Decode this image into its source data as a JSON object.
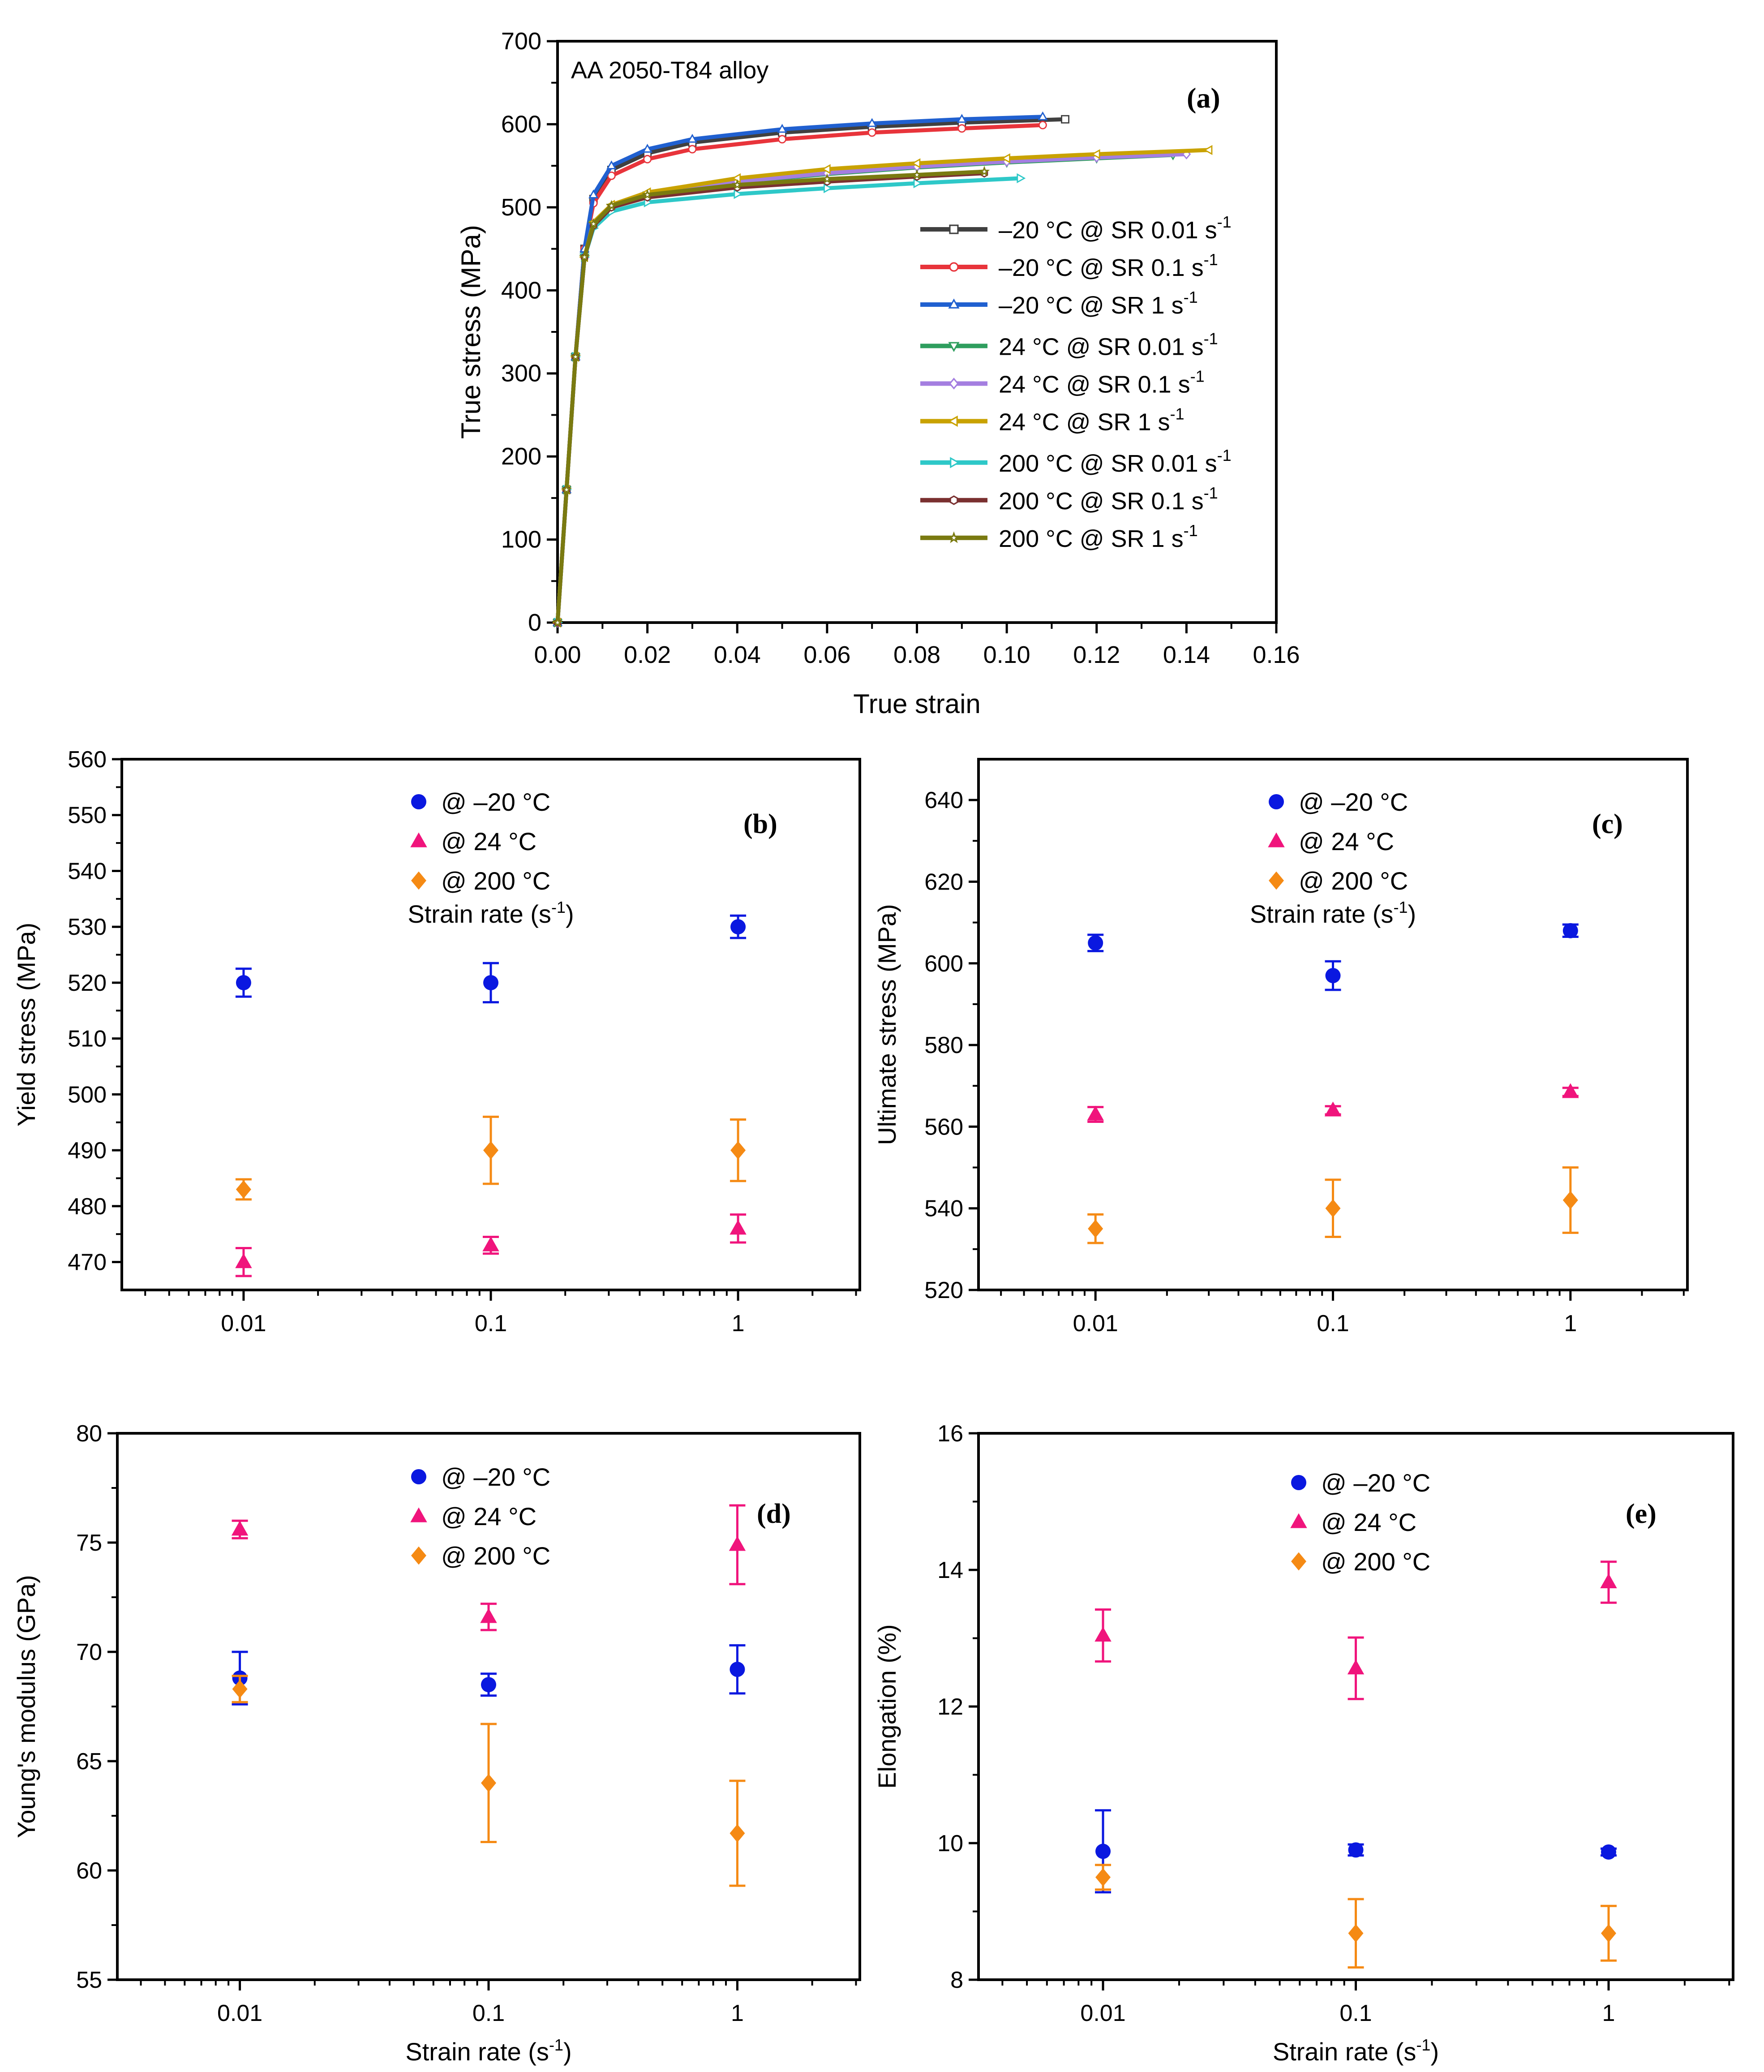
{
  "chart_data": [
    {
      "id": "a",
      "type": "line",
      "panel_label": "(a)",
      "title": "AA 2050-T84 alloy",
      "xlabel": "True strain",
      "ylabel": "True stress (MPa)",
      "xlim": [
        0,
        0.16
      ],
      "ylim": [
        0,
        700
      ],
      "xticks": [
        "0.00",
        "0.02",
        "0.04",
        "0.06",
        "0.08",
        "0.10",
        "0.12",
        "0.14",
        "0.16"
      ],
      "yticks": [
        "0",
        "100",
        "200",
        "300",
        "400",
        "500",
        "600",
        "700"
      ],
      "legend_position": "right",
      "series": [
        {
          "name": "–20 °C @ SR 0.01 s",
          "sup": "-1",
          "color": "#404040",
          "marker": "square",
          "x": [
            0,
            0.002,
            0.004,
            0.006,
            0.008,
            0.012,
            0.02,
            0.03,
            0.05,
            0.07,
            0.09,
            0.113
          ],
          "y": [
            0,
            160,
            320,
            450,
            510,
            545,
            565,
            578,
            590,
            597,
            602,
            606
          ]
        },
        {
          "name": "–20 °C @ SR 0.1 s",
          "sup": "-1",
          "color": "#e8343b",
          "marker": "circle",
          "x": [
            0,
            0.002,
            0.004,
            0.006,
            0.008,
            0.012,
            0.02,
            0.03,
            0.05,
            0.07,
            0.09,
            0.108
          ],
          "y": [
            0,
            160,
            320,
            450,
            505,
            538,
            558,
            570,
            582,
            590,
            595,
            599
          ]
        },
        {
          "name": "–20 °C @ SR 1 s",
          "sup": "-1",
          "color": "#2060d0",
          "marker": "triangle-up",
          "x": [
            0,
            0.002,
            0.004,
            0.006,
            0.008,
            0.012,
            0.02,
            0.03,
            0.05,
            0.07,
            0.09,
            0.108
          ],
          "y": [
            0,
            160,
            320,
            450,
            515,
            550,
            570,
            582,
            594,
            601,
            606,
            609
          ]
        },
        {
          "name": "24 °C @ SR 0.01 s",
          "sup": "-1",
          "color": "#2e9e5e",
          "marker": "triangle-down",
          "x": [
            0,
            0.002,
            0.004,
            0.006,
            0.008,
            0.012,
            0.02,
            0.04,
            0.06,
            0.08,
            0.1,
            0.12,
            0.137
          ],
          "y": [
            0,
            160,
            320,
            440,
            480,
            500,
            515,
            530,
            540,
            548,
            554,
            559,
            563
          ]
        },
        {
          "name": "24 °C @ SR 0.1 s",
          "sup": "-1",
          "color": "#a47ee0",
          "marker": "diamond",
          "x": [
            0,
            0.002,
            0.004,
            0.006,
            0.008,
            0.012,
            0.02,
            0.04,
            0.06,
            0.08,
            0.1,
            0.12,
            0.14
          ],
          "y": [
            0,
            160,
            320,
            440,
            480,
            500,
            515,
            531,
            541,
            549,
            555,
            560,
            564
          ]
        },
        {
          "name": "24 °C @ SR 1 s",
          "sup": "-1",
          "color": "#c9a200",
          "marker": "triangle-left",
          "x": [
            0,
            0.002,
            0.004,
            0.006,
            0.008,
            0.012,
            0.02,
            0.04,
            0.06,
            0.08,
            0.1,
            0.12,
            0.145
          ],
          "y": [
            0,
            160,
            320,
            440,
            482,
            503,
            518,
            535,
            546,
            553,
            559,
            564,
            569
          ]
        },
        {
          "name": "200 °C @ SR 0.01 s",
          "sup": "-1",
          "color": "#2ec8c8",
          "marker": "triangle-right",
          "x": [
            0,
            0.002,
            0.004,
            0.006,
            0.008,
            0.012,
            0.02,
            0.04,
            0.06,
            0.08,
            0.103
          ],
          "y": [
            0,
            160,
            320,
            440,
            475,
            495,
            506,
            516,
            523,
            529,
            535
          ]
        },
        {
          "name": "200 °C @ SR 0.1 s",
          "sup": "-1",
          "color": "#7a3030",
          "marker": "hexagon",
          "x": [
            0,
            0.002,
            0.004,
            0.006,
            0.008,
            0.012,
            0.02,
            0.04,
            0.06,
            0.08,
            0.095
          ],
          "y": [
            0,
            160,
            320,
            440,
            478,
            500,
            512,
            524,
            531,
            537,
            541
          ]
        },
        {
          "name": "200 °C @ SR 1 s",
          "sup": "-1",
          "color": "#7a7a10",
          "marker": "star",
          "x": [
            0,
            0.002,
            0.004,
            0.006,
            0.008,
            0.012,
            0.02,
            0.04,
            0.06,
            0.08,
            0.095
          ],
          "y": [
            0,
            160,
            320,
            440,
            480,
            502,
            515,
            527,
            534,
            539,
            543
          ]
        }
      ]
    },
    {
      "id": "b",
      "type": "scatter",
      "panel_label": "(b)",
      "xlabel": "Strain rate (s",
      "xlabel_sup": "-1",
      "xlabel_end": ")",
      "ylabel": "Yield stress (MPa)",
      "categories": [
        "0.01",
        "0.1",
        "1"
      ],
      "ylim": [
        465,
        560
      ],
      "yticks": [
        "470",
        "480",
        "490",
        "500",
        "510",
        "520",
        "530",
        "540",
        "550",
        "560"
      ],
      "legend_position": "top-center",
      "series": [
        {
          "name": "@ –20 °C",
          "color": "#0a18e0",
          "marker": "circle",
          "values": [
            520,
            520,
            530
          ],
          "err": [
            2.5,
            3.5,
            2
          ]
        },
        {
          "name": "@ 24 °C",
          "color": "#f0147c",
          "marker": "triangle-up",
          "values": [
            470,
            473,
            476
          ],
          "err": [
            2.5,
            1.5,
            2.5
          ]
        },
        {
          "name": "@ 200 °C",
          "color": "#f58a14",
          "marker": "diamond",
          "values": [
            483,
            490,
            490
          ],
          "err": [
            1.8,
            6,
            5.5
          ]
        }
      ]
    },
    {
      "id": "c",
      "type": "scatter",
      "panel_label": "(c)",
      "xlabel": "Strain rate (s",
      "xlabel_sup": "-1",
      "xlabel_end": ")",
      "ylabel": "Ultimate stress (MPa)",
      "categories": [
        "0.01",
        "0.1",
        "1"
      ],
      "ylim": [
        520,
        650
      ],
      "yticks": [
        "520",
        "540",
        "560",
        "580",
        "600",
        "620",
        "640"
      ],
      "legend_position": "top-center",
      "series": [
        {
          "name": "@ –20 °C",
          "color": "#0a18e0",
          "marker": "circle",
          "values": [
            605,
            597,
            608
          ],
          "err": [
            2,
            3.5,
            1.5
          ]
        },
        {
          "name": "@  24 °C",
          "color": "#f0147c",
          "marker": "triangle-up",
          "values": [
            563,
            564,
            568.5
          ],
          "err": [
            1.8,
            1,
            1
          ]
        },
        {
          "name": "@  200 °C",
          "color": "#f58a14",
          "marker": "diamond",
          "values": [
            535,
            540,
            542
          ],
          "err": [
            3.5,
            7,
            8
          ]
        }
      ]
    },
    {
      "id": "d",
      "type": "scatter",
      "panel_label": "(d)",
      "xlabel": "Strain rate (s",
      "xlabel_sup": "-1",
      "xlabel_end": ")",
      "ylabel": "Young's modulus (GPa)",
      "categories": [
        "0.01",
        "0.1",
        "1"
      ],
      "ylim": [
        55,
        80
      ],
      "yticks": [
        "55",
        "60",
        "65",
        "70",
        "75",
        "80"
      ],
      "legend_position": "top-center",
      "series": [
        {
          "name": "@ –20 °C",
          "color": "#0a18e0",
          "marker": "circle",
          "values": [
            68.8,
            68.5,
            69.2
          ],
          "err": [
            1.2,
            0.5,
            1.1
          ]
        },
        {
          "name": "@  24 °C",
          "color": "#f0147c",
          "marker": "triangle-up",
          "values": [
            75.6,
            71.6,
            74.9
          ],
          "err": [
            0.4,
            0.6,
            1.8
          ]
        },
        {
          "name": "@  200 °C",
          "color": "#f58a14",
          "marker": "diamond",
          "values": [
            68.3,
            64,
            61.7
          ],
          "err": [
            0.6,
            2.7,
            2.4
          ]
        }
      ]
    },
    {
      "id": "e",
      "type": "scatter",
      "panel_label": "(e)",
      "xlabel": "Strain rate (s",
      "xlabel_sup": "-1",
      "xlabel_end": ")",
      "ylabel": "Elongation (%)",
      "categories": [
        "0.01",
        "0.1",
        "1"
      ],
      "ylim": [
        8,
        16
      ],
      "yticks": [
        "8",
        "10",
        "12",
        "14",
        "16"
      ],
      "legend_position": "top-center",
      "series": [
        {
          "name": "@ –20 °C",
          "color": "#0a18e0",
          "marker": "circle",
          "values": [
            9.88,
            9.9,
            9.87
          ],
          "err": [
            0.6,
            0.08,
            0.05
          ]
        },
        {
          "name": "@  24 °C",
          "color": "#f0147c",
          "marker": "triangle-up",
          "values": [
            13.04,
            12.56,
            13.82
          ],
          "err": [
            0.38,
            0.45,
            0.3
          ]
        },
        {
          "name": "@  200 °C",
          "color": "#f58a14",
          "marker": "diamond",
          "values": [
            9.5,
            8.68,
            8.68
          ],
          "err": [
            0.18,
            0.5,
            0.4
          ]
        }
      ]
    }
  ]
}
